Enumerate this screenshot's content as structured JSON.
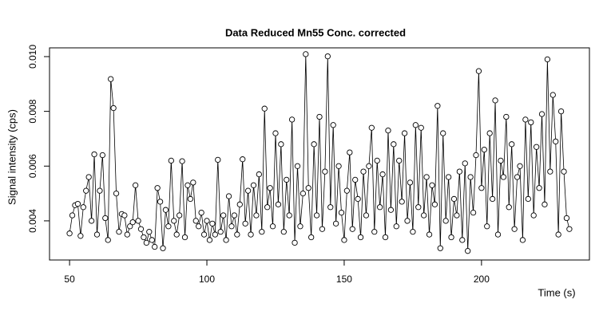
{
  "chart_data": {
    "type": "line",
    "title": "Data Reduced Mn55 Conc. corrected",
    "xlabel": "Time (s)",
    "ylabel": "Signal intensity (cps)",
    "x": [
      50,
      51,
      52,
      53,
      54,
      55,
      56,
      57,
      58,
      59,
      60,
      61,
      62,
      63,
      64,
      65,
      66,
      67,
      68,
      69,
      70,
      71,
      72,
      73,
      74,
      75,
      76,
      77,
      78,
      79,
      80,
      81,
      82,
      83,
      84,
      85,
      86,
      87,
      88,
      89,
      90,
      91,
      92,
      93,
      94,
      95,
      96,
      97,
      98,
      99,
      100,
      101,
      102,
      103,
      104,
      105,
      106,
      107,
      108,
      109,
      110,
      111,
      112,
      113,
      114,
      115,
      116,
      117,
      118,
      119,
      120,
      121,
      122,
      123,
      124,
      125,
      126,
      127,
      128,
      129,
      130,
      131,
      132,
      133,
      134,
      135,
      136,
      137,
      138,
      139,
      140,
      141,
      142,
      143,
      144,
      145,
      146,
      147,
      148,
      149,
      150,
      151,
      152,
      153,
      154,
      155,
      156,
      157,
      158,
      159,
      160,
      161,
      162,
      163,
      164,
      165,
      166,
      167,
      168,
      169,
      170,
      171,
      172,
      173,
      174,
      175,
      176,
      177,
      178,
      179,
      180,
      181,
      182,
      183,
      184,
      185,
      186,
      187,
      188,
      189,
      190,
      191,
      192,
      193,
      194,
      195,
      196,
      197,
      198,
      199,
      200,
      201,
      202,
      203,
      204,
      205,
      206,
      207,
      208,
      209,
      210,
      211,
      212,
      213,
      214,
      215,
      216,
      217,
      218,
      219,
      220,
      221,
      222,
      223,
      224,
      225,
      226,
      227,
      228,
      229,
      230,
      231,
      232
    ],
    "values": [
      0.00354,
      0.0042,
      0.00457,
      0.00462,
      0.00345,
      0.0045,
      0.0051,
      0.0056,
      0.004,
      0.00643,
      0.0035,
      0.0051,
      0.0064,
      0.0041,
      0.0033,
      0.00918,
      0.00812,
      0.005,
      0.0036,
      0.00425,
      0.0042,
      0.0035,
      0.0038,
      0.00395,
      0.0053,
      0.004,
      0.0037,
      0.0034,
      0.0032,
      0.0036,
      0.0033,
      0.00305,
      0.0052,
      0.0047,
      0.003,
      0.0044,
      0.0038,
      0.0062,
      0.004,
      0.0035,
      0.0042,
      0.00618,
      0.0034,
      0.0053,
      0.0048,
      0.0054,
      0.004,
      0.0038,
      0.0043,
      0.0035,
      0.004,
      0.0033,
      0.0039,
      0.0035,
      0.00623,
      0.0036,
      0.0042,
      0.0033,
      0.0049,
      0.0038,
      0.0042,
      0.0035,
      0.0046,
      0.00625,
      0.0039,
      0.0051,
      0.0035,
      0.0053,
      0.0042,
      0.0057,
      0.0036,
      0.0081,
      0.0045,
      0.0052,
      0.0038,
      0.0072,
      0.0046,
      0.0068,
      0.0036,
      0.0055,
      0.0042,
      0.0077,
      0.0032,
      0.006,
      0.0038,
      0.005,
      0.01009,
      0.0052,
      0.0034,
      0.0068,
      0.0042,
      0.0078,
      0.0037,
      0.0058,
      0.01001,
      0.0045,
      0.0075,
      0.0039,
      0.006,
      0.0043,
      0.0033,
      0.0051,
      0.0065,
      0.0037,
      0.0055,
      0.0048,
      0.0034,
      0.0058,
      0.0042,
      0.006,
      0.0074,
      0.0036,
      0.0062,
      0.0045,
      0.0057,
      0.0034,
      0.0073,
      0.0044,
      0.0068,
      0.0038,
      0.0062,
      0.0047,
      0.0072,
      0.004,
      0.0054,
      0.0036,
      0.0075,
      0.0045,
      0.0074,
      0.0042,
      0.0056,
      0.0035,
      0.0053,
      0.0046,
      0.0082,
      0.003,
      0.0072,
      0.004,
      0.0056,
      0.0034,
      0.0048,
      0.0042,
      0.0058,
      0.0033,
      0.0061,
      0.0029,
      0.0056,
      0.0043,
      0.0064,
      0.00947,
      0.0052,
      0.0066,
      0.0038,
      0.0072,
      0.0048,
      0.0084,
      0.0035,
      0.0062,
      0.0056,
      0.0078,
      0.0045,
      0.0068,
      0.0037,
      0.0056,
      0.006,
      0.0033,
      0.0077,
      0.0048,
      0.0076,
      0.0042,
      0.0067,
      0.0052,
      0.0079,
      0.0046,
      0.0099,
      0.0058,
      0.0086,
      0.0069,
      0.0035,
      0.008,
      0.0058,
      0.0041,
      0.0037
    ],
    "color": "#000000",
    "xlim": [
      42.7,
      239.3
    ],
    "xticks": [
      50,
      100,
      150,
      200
    ],
    "ylim": [
      0.00257,
      0.01032
    ],
    "yticks": [
      0.004,
      0.006,
      0.008,
      {
        "value": 0.01,
        "label": "0.010"
      }
    ]
  }
}
